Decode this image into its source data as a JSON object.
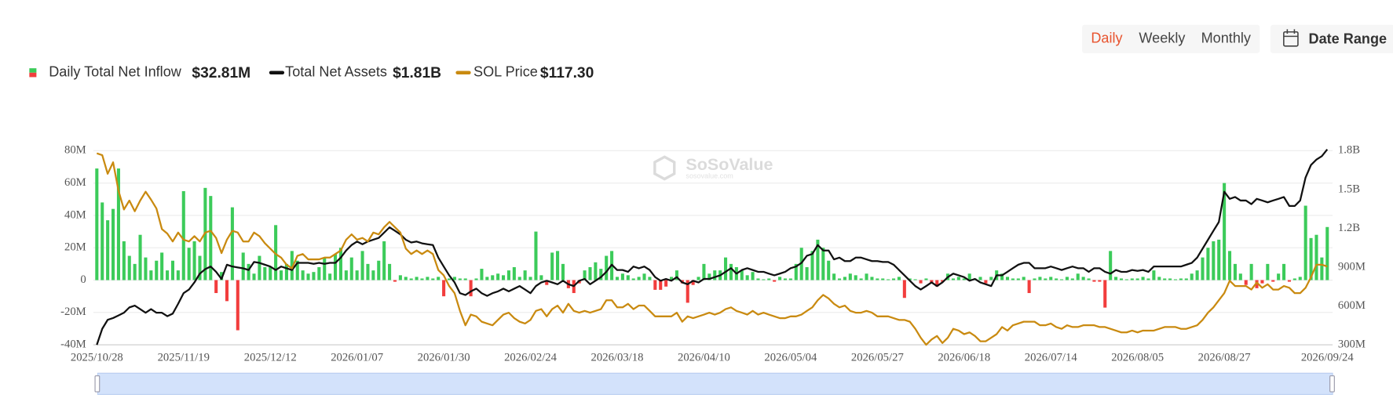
{
  "ui": {
    "tabs": [
      "Daily",
      "Weekly",
      "Monthly"
    ],
    "active_tab": 0,
    "date_range": "Date Range",
    "watermark": "SoSoValue",
    "watermark_sub": "sosovalue.com"
  },
  "chart_data": {
    "type": "combo",
    "categories": [
      "2025/10/28",
      null,
      null,
      null,
      null,
      null,
      null,
      null,
      null,
      null,
      null,
      null,
      null,
      null,
      null,
      null,
      "2025/11/19",
      null,
      null,
      null,
      null,
      null,
      null,
      null,
      null,
      null,
      null,
      null,
      null,
      null,
      null,
      null,
      "2025/12/12",
      null,
      null,
      null,
      null,
      null,
      null,
      null,
      null,
      null,
      null,
      null,
      null,
      null,
      null,
      null,
      "2026/01/07",
      null,
      null,
      null,
      null,
      null,
      null,
      null,
      null,
      null,
      null,
      null,
      null,
      null,
      null,
      null,
      "2026/01/30",
      null,
      null,
      null,
      null,
      null,
      null,
      null,
      null,
      null,
      null,
      null,
      null,
      null,
      null,
      null,
      "2026/02/24",
      null,
      null,
      null,
      null,
      null,
      null,
      null,
      null,
      null,
      null,
      null,
      null,
      null,
      null,
      null,
      "2026/03/18",
      null,
      null,
      null,
      null,
      null,
      null,
      null,
      null,
      null,
      null,
      null,
      null,
      null,
      null,
      null,
      "2026/04/10",
      null,
      null,
      null,
      null,
      null,
      null,
      null,
      null,
      null,
      null,
      null,
      null,
      null,
      null,
      null,
      "2026/05/04",
      null,
      null,
      null,
      null,
      null,
      null,
      null,
      null,
      null,
      null,
      null,
      null,
      null,
      null,
      null,
      "2026/05/27",
      null,
      null,
      null,
      null,
      null,
      null,
      null,
      null,
      null,
      null,
      null,
      null,
      null,
      null,
      null,
      "2026/06/18",
      null,
      null,
      null,
      null,
      null,
      null,
      null,
      null,
      null,
      null,
      null,
      null,
      null,
      null,
      null,
      "2026/07/14",
      null,
      null,
      null,
      null,
      null,
      null,
      null,
      null,
      null,
      null,
      null,
      null,
      null,
      null,
      null,
      "2026/08/05",
      null,
      null,
      null,
      null,
      null,
      null,
      null,
      null,
      null,
      null,
      null,
      null,
      null,
      null,
      null,
      "2026/08/27",
      null,
      null,
      null,
      null,
      null,
      null,
      null,
      null,
      null,
      null,
      null,
      null,
      null,
      null,
      null,
      null,
      null,
      null,
      "2026/09/24"
    ],
    "series": [
      {
        "name": "Daily Total Net Inflow",
        "type": "bar",
        "color": "#3ccb5a",
        "negative_color": "#f23d3d",
        "legend_value": "$32.81M",
        "values": [
          69,
          48,
          37,
          44,
          69,
          24,
          15,
          10,
          28,
          14,
          6,
          12,
          17,
          6,
          12,
          6,
          55,
          20,
          24,
          15,
          57,
          52,
          -8,
          5,
          -13,
          45,
          -31,
          17,
          10,
          4,
          15,
          8,
          8,
          34,
          6,
          10,
          18,
          12,
          6,
          4,
          5,
          8,
          14,
          4,
          16,
          20,
          6,
          14,
          6,
          18,
          10,
          6,
          12,
          24,
          10,
          -1,
          3,
          2,
          1,
          2,
          1,
          2,
          1,
          2,
          -10,
          1,
          2,
          1,
          1,
          -10,
          1,
          7,
          2,
          3,
          4,
          3,
          6,
          8,
          2,
          6,
          2,
          30,
          3,
          -3,
          17,
          18,
          10,
          -5,
          -8,
          -2,
          6,
          8,
          11,
          7,
          15,
          18,
          2,
          4,
          3,
          1,
          2,
          4,
          2,
          -6,
          -6,
          -4,
          2,
          6,
          -2,
          -14,
          -3,
          2,
          10,
          4,
          6,
          6,
          14,
          10,
          8,
          6,
          3,
          5,
          1,
          0.5,
          1,
          -1,
          2,
          1,
          1,
          10,
          20,
          8,
          18,
          25,
          20,
          12,
          4,
          1,
          2,
          4,
          3,
          1,
          4,
          2,
          1,
          1,
          0.5,
          1,
          2,
          -11,
          1,
          0.5,
          -2,
          1,
          -2,
          -4,
          -1,
          4,
          1,
          2,
          1,
          4,
          1,
          2,
          -2,
          2,
          6,
          4,
          2,
          1,
          1,
          2,
          -8,
          1,
          2,
          1,
          2,
          1,
          0.5,
          2,
          1,
          4,
          2,
          1,
          -1,
          -1,
          -17,
          18,
          2,
          1,
          0.5,
          1,
          1,
          2,
          1,
          6,
          2,
          1,
          1,
          0.5,
          1,
          1,
          4,
          6,
          14,
          20,
          24,
          25,
          60,
          18,
          10,
          4,
          -3,
          10,
          -5,
          -2,
          10,
          -1,
          4,
          10,
          -1,
          1,
          2,
          46,
          26,
          28,
          14,
          32.81
        ]
      },
      {
        "name": "Total Net Assets",
        "type": "line",
        "axis": "y2",
        "color": "#111111",
        "legend_value": "$1.81B",
        "values": [
          300,
          424,
          493,
          507,
          527,
          548,
          589,
          603,
          576,
          548,
          576,
          548,
          548,
          521,
          541,
          617,
          699,
          727,
          782,
          850,
          885,
          905,
          864,
          809,
          919,
          905,
          898,
          891,
          878,
          940,
          933,
          919,
          905,
          878,
          905,
          891,
          878,
          933,
          933,
          933,
          926,
          933,
          926,
          933,
          933,
          974,
          1029,
          1071,
          1098,
          1077,
          1098,
          1112,
          1126,
          1167,
          1208,
          1181,
          1153,
          1112,
          1091,
          1098,
          1084,
          1077,
          1071,
          974,
          905,
          837,
          782,
          699,
          685,
          713,
          734,
          699,
          678,
          699,
          713,
          734,
          713,
          734,
          754,
          727,
          699,
          754,
          782,
          795,
          782,
          768,
          795,
          768,
          754,
          795,
          809,
          768,
          795,
          823,
          864,
          919,
          878,
          878,
          864,
          905,
          891,
          905,
          878,
          823,
          795,
          809,
          795,
          823,
          782,
          768,
          795,
          782,
          809,
          809,
          823,
          837,
          864,
          892,
          850,
          878,
          892,
          878,
          864,
          864,
          850,
          837,
          850,
          864,
          892,
          905,
          933,
          988,
          1002,
          1071,
          1029,
          1029,
          960,
          974,
          947,
          947,
          974,
          974,
          960,
          947,
          947,
          940,
          940,
          919,
          878,
          837,
          795,
          754,
          727,
          754,
          782,
          754,
          782,
          823,
          850,
          837,
          823,
          795,
          809,
          782,
          768,
          754,
          837,
          837,
          864,
          892,
          919,
          933,
          933,
          892,
          892,
          892,
          905,
          892,
          878,
          892,
          905,
          892,
          892,
          864,
          892,
          892,
          864,
          850,
          878,
          864,
          864,
          878,
          871,
          878,
          864,
          905,
          905,
          905,
          905,
          905,
          905,
          919,
          933,
          974,
          1043,
          1112,
          1181,
          1249,
          1483,
          1428,
          1442,
          1415,
          1415,
          1387,
          1428,
          1415,
          1401,
          1415,
          1428,
          1442,
          1373,
          1373,
          1415,
          1593,
          1690,
          1731,
          1758,
          1810
        ]
      },
      {
        "name": "SOL Price",
        "type": "line",
        "axis": "y3",
        "color": "#c98a10",
        "legend_value": "$117.30",
        "values": [
          200.1,
          198.7,
          185.1,
          193.5,
          172.7,
          159.0,
          165.5,
          157.7,
          165.5,
          172.0,
          166.2,
          159.7,
          144.7,
          141.4,
          135.6,
          142.1,
          136.9,
          135.6,
          139.5,
          135.6,
          142.1,
          143.4,
          138.2,
          127.1,
          136.9,
          143.4,
          142.1,
          135.6,
          135.6,
          142.1,
          139.5,
          134.3,
          130.4,
          126.4,
          123.8,
          118.6,
          116.0,
          125.1,
          126.4,
          122.5,
          122.5,
          122.5,
          123.8,
          123.8,
          126.4,
          129.0,
          136.9,
          140.8,
          136.9,
          138.2,
          135.6,
          142.1,
          140.8,
          146.0,
          149.9,
          146.0,
          142.1,
          130.4,
          126.4,
          129.0,
          126.4,
          129.0,
          126.4,
          114.7,
          110.8,
          103.0,
          97.8,
          84.8,
          74.3,
          82.1,
          80.8,
          76.9,
          75.6,
          74.3,
          78.2,
          82.1,
          83.5,
          79.5,
          76.9,
          75.6,
          78.2,
          84.8,
          86.1,
          80.8,
          86.1,
          88.7,
          83.5,
          90.0,
          84.8,
          83.5,
          84.8,
          83.5,
          84.8,
          86.1,
          92.6,
          92.6,
          87.4,
          87.4,
          90.0,
          86.1,
          88.7,
          88.7,
          84.8,
          80.8,
          80.8,
          80.8,
          80.8,
          83.5,
          76.9,
          80.8,
          79.5,
          80.8,
          82.1,
          83.5,
          82.1,
          83.5,
          86.1,
          87.4,
          84.8,
          83.5,
          82.1,
          84.8,
          82.1,
          83.5,
          82.1,
          80.8,
          79.5,
          79.5,
          80.8,
          80.8,
          82.1,
          84.8,
          87.4,
          92.6,
          96.5,
          93.9,
          90.0,
          87.4,
          88.7,
          84.8,
          83.5,
          83.5,
          84.8,
          83.5,
          80.8,
          80.8,
          80.8,
          79.5,
          78.2,
          78.2,
          76.9,
          71.7,
          65.2,
          60.0,
          63.9,
          66.5,
          61.3,
          65.2,
          71.7,
          70.4,
          67.8,
          69.1,
          66.5,
          62.6,
          62.6,
          65.2,
          67.8,
          73.0,
          70.4,
          74.3,
          75.6,
          76.9,
          76.9,
          76.9,
          74.3,
          74.3,
          75.6,
          73.0,
          71.7,
          74.3,
          73.0,
          73.0,
          74.3,
          74.3,
          74.3,
          73.0,
          73.0,
          71.7,
          70.4,
          69.1,
          69.1,
          70.4,
          69.1,
          70.4,
          70.4,
          70.4,
          71.7,
          73.0,
          73.0,
          73.0,
          71.7,
          71.7,
          73.0,
          74.3,
          78.2,
          83.5,
          87.4,
          92.6,
          97.8,
          106.9,
          103.0,
          103.0,
          103.0,
          100.4,
          105.6,
          101.7,
          104.3,
          100.4,
          100.4,
          103.0,
          101.7,
          97.8,
          97.8,
          101.7,
          109.5,
          118.6,
          118.6,
          117.3
        ]
      }
    ],
    "ylim": [
      -40,
      80
    ],
    "yticks": [
      {
        "value": -40,
        "label": "-40M"
      },
      {
        "value": -20,
        "label": "-20M"
      },
      0,
      {
        "value": 20,
        "label": "20M"
      },
      {
        "value": 40,
        "label": "40M"
      },
      {
        "value": 60,
        "label": "60M"
      },
      {
        "value": 80,
        "label": "80M"
      }
    ],
    "y2lim": [
      300,
      1800
    ],
    "y2ticks": [
      {
        "value": 300,
        "label": "300M"
      },
      {
        "value": 600,
        "label": "600M"
      },
      {
        "value": 900,
        "label": "900M"
      },
      {
        "value": 1200,
        "label": "1.2B"
      },
      {
        "value": 1500,
        "label": "1.5B"
      },
      {
        "value": 1800,
        "label": "1.8B"
      }
    ],
    "y3lim": [
      60,
      202
    ],
    "grid": true
  }
}
